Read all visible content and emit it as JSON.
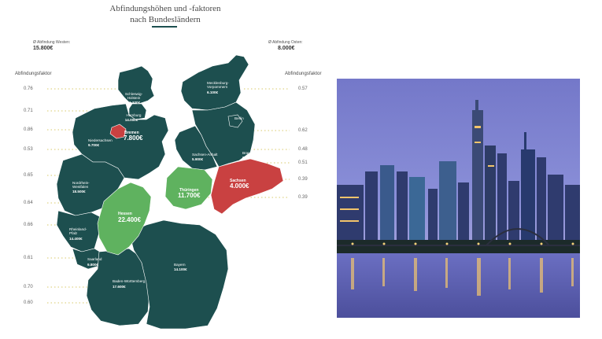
{
  "header": {
    "title_line1": "Abfindungshöhen und -faktoren",
    "title_line2": "nach Bundesländern"
  },
  "averages": {
    "west_label": "Ø Abfindung Westen:",
    "west_value": "15.800€",
    "east_label": "Ø Abfindung Osten:",
    "east_value": "8.000€"
  },
  "faktor_heading_left": "Abfindungsfaktor",
  "faktor_heading_right": "Abfindungsfaktor",
  "factors_left": [
    "0.76",
    "0.71",
    "0.86",
    "0.53",
    "0.65",
    "0.64",
    "0.66",
    "0.61",
    "0.70",
    "0.60"
  ],
  "factors_right": [
    "0.57",
    "0.62",
    "0.48",
    "0.51",
    "0.39",
    "0.39"
  ],
  "states": {
    "sh": {
      "name_1": "Schleswig-",
      "name_2": "Holstein",
      "value": "11.100€"
    },
    "hh": {
      "name": "Hamburg",
      "value": "14.000€"
    },
    "hb": {
      "name": "Bremen",
      "value": "7.800€"
    },
    "ni": {
      "name": "Niedersachsen",
      "value": "9.700€"
    },
    "nw": {
      "name_1": "Nordrhein-",
      "name_2": "Westfalen",
      "value": "18.500€"
    },
    "he": {
      "name": "Hessen",
      "value": "22.400€"
    },
    "rp": {
      "name_1": "Rheinland-",
      "name_2": "Pfalz",
      "value": "14.400€"
    },
    "sl": {
      "name": "Saarland",
      "value": "9.800€"
    },
    "bw": {
      "name": "Baden-Württemberg",
      "value": "17.600€"
    },
    "by": {
      "name": "Bayern",
      "value": "14.100€"
    },
    "mv": {
      "name_1": "Mecklenburg-",
      "name_2": "Vorpommern",
      "value": "6.100€"
    },
    "be": {
      "name": "Berlin"
    },
    "bb": {
      "name": "Brandenburg",
      "value": "9.600€"
    },
    "st": {
      "name": "Sachsen-Anhalt",
      "value": "5.900€"
    },
    "th": {
      "name": "Thüringen",
      "value": "11.700€"
    },
    "sn": {
      "name": "Sachsen",
      "value": "4.000€"
    }
  },
  "colors": {
    "teal": "#1d4f4f",
    "green": "#5fb25f",
    "red": "#c94141",
    "leader": "#d8c96a"
  },
  "photo": {
    "description": "frankfurt-skyline-at-dusk"
  }
}
